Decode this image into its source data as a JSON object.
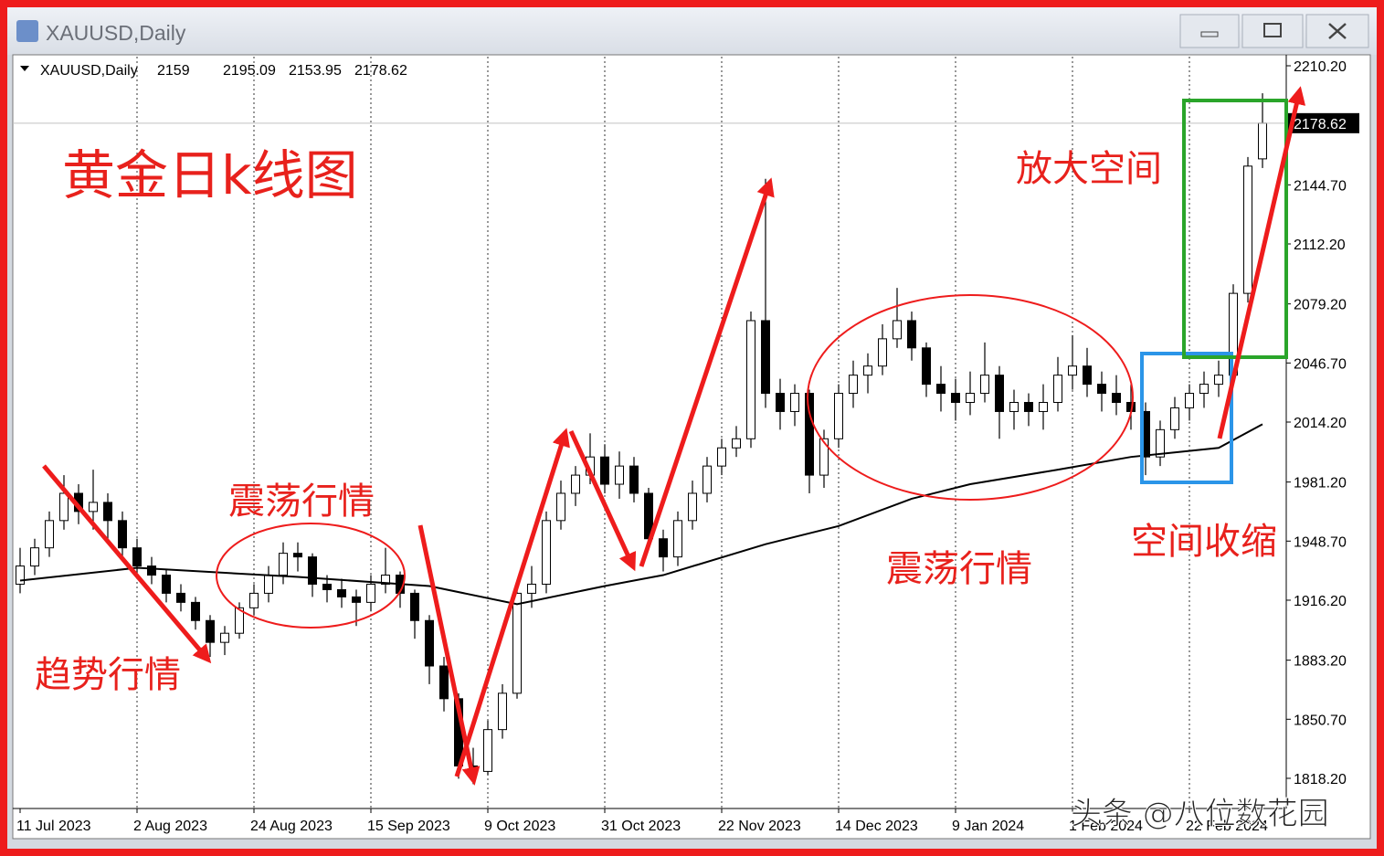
{
  "window": {
    "title": "XAUUSD,Daily"
  },
  "chart_data": {
    "type": "candlestick",
    "title": "XAUUSD,Daily",
    "categories": [
      "11 Jul 2023",
      null,
      null,
      null,
      null,
      null,
      null,
      null,
      "2 Aug 2023",
      null,
      null,
      null,
      null,
      null,
      null,
      null,
      "24 Aug 2023",
      null,
      null,
      null,
      null,
      null,
      null,
      null,
      "15 Sep 2023",
      null,
      null,
      null,
      null,
      null,
      null,
      null,
      "9 Oct 2023",
      null,
      null,
      null,
      null,
      null,
      null,
      null,
      "31 Oct 2023",
      null,
      null,
      null,
      null,
      null,
      null,
      null,
      "22 Nov 2023",
      null,
      null,
      null,
      null,
      null,
      null,
      null,
      "14 Dec 2023",
      null,
      null,
      null,
      null,
      null,
      null,
      null,
      "9 Jan 2024",
      null,
      null,
      null,
      null,
      null,
      null,
      null,
      "1 Feb 2024",
      null,
      null,
      null,
      null,
      null,
      null,
      null,
      "22 Feb 2024",
      null,
      null,
      null,
      null,
      null
    ],
    "values": [
      [
        1925,
        1945,
        1920,
        1935
      ],
      [
        1935,
        1950,
        1930,
        1945
      ],
      [
        1945,
        1965,
        1940,
        1960
      ],
      [
        1960,
        1985,
        1955,
        1975
      ],
      [
        1975,
        1980,
        1958,
        1965
      ],
      [
        1965,
        1988,
        1955,
        1970
      ],
      [
        1970,
        1975,
        1950,
        1960
      ],
      [
        1960,
        1965,
        1940,
        1945
      ],
      [
        1945,
        1950,
        1930,
        1935
      ],
      [
        1935,
        1940,
        1925,
        1930
      ],
      [
        1930,
        1933,
        1915,
        1920
      ],
      [
        1920,
        1925,
        1910,
        1915
      ],
      [
        1915,
        1918,
        1900,
        1905
      ],
      [
        1905,
        1908,
        1885,
        1893
      ],
      [
        1893,
        1902,
        1886,
        1898
      ],
      [
        1898,
        1915,
        1895,
        1912
      ],
      [
        1912,
        1925,
        1908,
        1920
      ],
      [
        1920,
        1935,
        1915,
        1930
      ],
      [
        1930,
        1948,
        1925,
        1942
      ],
      [
        1942,
        1948,
        1932,
        1940
      ],
      [
        1940,
        1942,
        1918,
        1925
      ],
      [
        1925,
        1930,
        1915,
        1922
      ],
      [
        1922,
        1928,
        1912,
        1918
      ],
      [
        1918,
        1922,
        1902,
        1915
      ],
      [
        1915,
        1930,
        1910,
        1925
      ],
      [
        1925,
        1945,
        1920,
        1930
      ],
      [
        1930,
        1932,
        1912,
        1920
      ],
      [
        1920,
        1922,
        1895,
        1905
      ],
      [
        1905,
        1908,
        1870,
        1880
      ],
      [
        1880,
        1885,
        1855,
        1862
      ],
      [
        1862,
        1865,
        1818,
        1825
      ],
      [
        1825,
        1835,
        1815,
        1822
      ],
      [
        1822,
        1850,
        1820,
        1845
      ],
      [
        1845,
        1870,
        1840,
        1865
      ],
      [
        1865,
        1925,
        1862,
        1920
      ],
      [
        1920,
        1935,
        1912,
        1925
      ],
      [
        1925,
        1965,
        1920,
        1960
      ],
      [
        1960,
        1982,
        1955,
        1975
      ],
      [
        1975,
        1990,
        1968,
        1985
      ],
      [
        1985,
        2008,
        1980,
        1995
      ],
      [
        1995,
        2002,
        1975,
        1980
      ],
      [
        1980,
        1998,
        1972,
        1990
      ],
      [
        1990,
        1995,
        1970,
        1975
      ],
      [
        1975,
        1978,
        1945,
        1950
      ],
      [
        1950,
        1955,
        1932,
        1940
      ],
      [
        1940,
        1965,
        1935,
        1960
      ],
      [
        1960,
        1982,
        1955,
        1975
      ],
      [
        1975,
        1995,
        1970,
        1990
      ],
      [
        1990,
        2005,
        1985,
        2000
      ],
      [
        2000,
        2012,
        1995,
        2005
      ],
      [
        2005,
        2075,
        2000,
        2070
      ],
      [
        2070,
        2148,
        2022,
        2030
      ],
      [
        2030,
        2038,
        2010,
        2020
      ],
      [
        2020,
        2035,
        2012,
        2030
      ],
      [
        2030,
        2032,
        1975,
        1985
      ],
      [
        1985,
        2010,
        1978,
        2005
      ],
      [
        2005,
        2035,
        2000,
        2030
      ],
      [
        2030,
        2048,
        2022,
        2040
      ],
      [
        2040,
        2052,
        2030,
        2045
      ],
      [
        2045,
        2068,
        2040,
        2060
      ],
      [
        2060,
        2088,
        2055,
        2070
      ],
      [
        2070,
        2075,
        2048,
        2055
      ],
      [
        2055,
        2058,
        2028,
        2035
      ],
      [
        2035,
        2045,
        2020,
        2030
      ],
      [
        2030,
        2038,
        2015,
        2025
      ],
      [
        2025,
        2042,
        2018,
        2030
      ],
      [
        2030,
        2058,
        2025,
        2040
      ],
      [
        2040,
        2045,
        2005,
        2020
      ],
      [
        2020,
        2032,
        2010,
        2025
      ],
      [
        2025,
        2030,
        2012,
        2020
      ],
      [
        2020,
        2035,
        2010,
        2025
      ],
      [
        2025,
        2050,
        2020,
        2040
      ],
      [
        2040,
        2062,
        2032,
        2045
      ],
      [
        2045,
        2055,
        2028,
        2035
      ],
      [
        2035,
        2042,
        2020,
        2030
      ],
      [
        2030,
        2040,
        2018,
        2025
      ],
      [
        2025,
        2035,
        2010,
        2020
      ],
      [
        2020,
        2025,
        1985,
        1995
      ],
      [
        1995,
        2015,
        1990,
        2010
      ],
      [
        2010,
        2028,
        2005,
        2022
      ],
      [
        2022,
        2035,
        2015,
        2030
      ],
      [
        2030,
        2042,
        2022,
        2035
      ],
      [
        2035,
        2048,
        2028,
        2040
      ],
      [
        2040,
        2090,
        2035,
        2085
      ],
      [
        2085,
        2160,
        2080,
        2155
      ],
      [
        2159.0,
        2195.09,
        2153.95,
        2178.62
      ]
    ],
    "ma": {
      "x": [
        0,
        8,
        19,
        28,
        34,
        40,
        44,
        51,
        56,
        61,
        65,
        71,
        76,
        82,
        85
      ],
      "values": [
        1927,
        1934,
        1929,
        1924,
        1914,
        1924,
        1930,
        1947,
        1957,
        1972,
        1980,
        1988,
        1995,
        2000,
        2013
      ]
    },
    "ylim": [
      1801.6,
      2215.23
    ],
    "yticks": [
      {
        "value": 2210.2,
        "label": "2210.20"
      },
      {
        "value": 2144.7,
        "label": "2144.70"
      },
      {
        "value": 2112.2,
        "label": "2112.20"
      },
      {
        "value": 2079.2,
        "label": "2079.20"
      },
      {
        "value": 2046.7,
        "label": "2046.70"
      },
      {
        "value": 2014.2,
        "label": "2014.20"
      },
      {
        "value": 1981.2,
        "label": "1981.20"
      },
      {
        "value": 1948.7,
        "label": "1948.70"
      },
      {
        "value": 1916.2,
        "label": "1916.20"
      },
      {
        "value": 1883.2,
        "label": "1883.20"
      },
      {
        "value": 1850.7,
        "label": "1850.70"
      },
      {
        "value": 1818.2,
        "label": "1818.20"
      }
    ],
    "annotations": {
      "heading": "黄金日k线图",
      "trend": "趋势行情",
      "range1": "震荡行情",
      "range2": "震荡行情",
      "expand": "放大空间",
      "shrink": "空间收缩"
    }
  },
  "watermark": "头条 @八位数花园"
}
